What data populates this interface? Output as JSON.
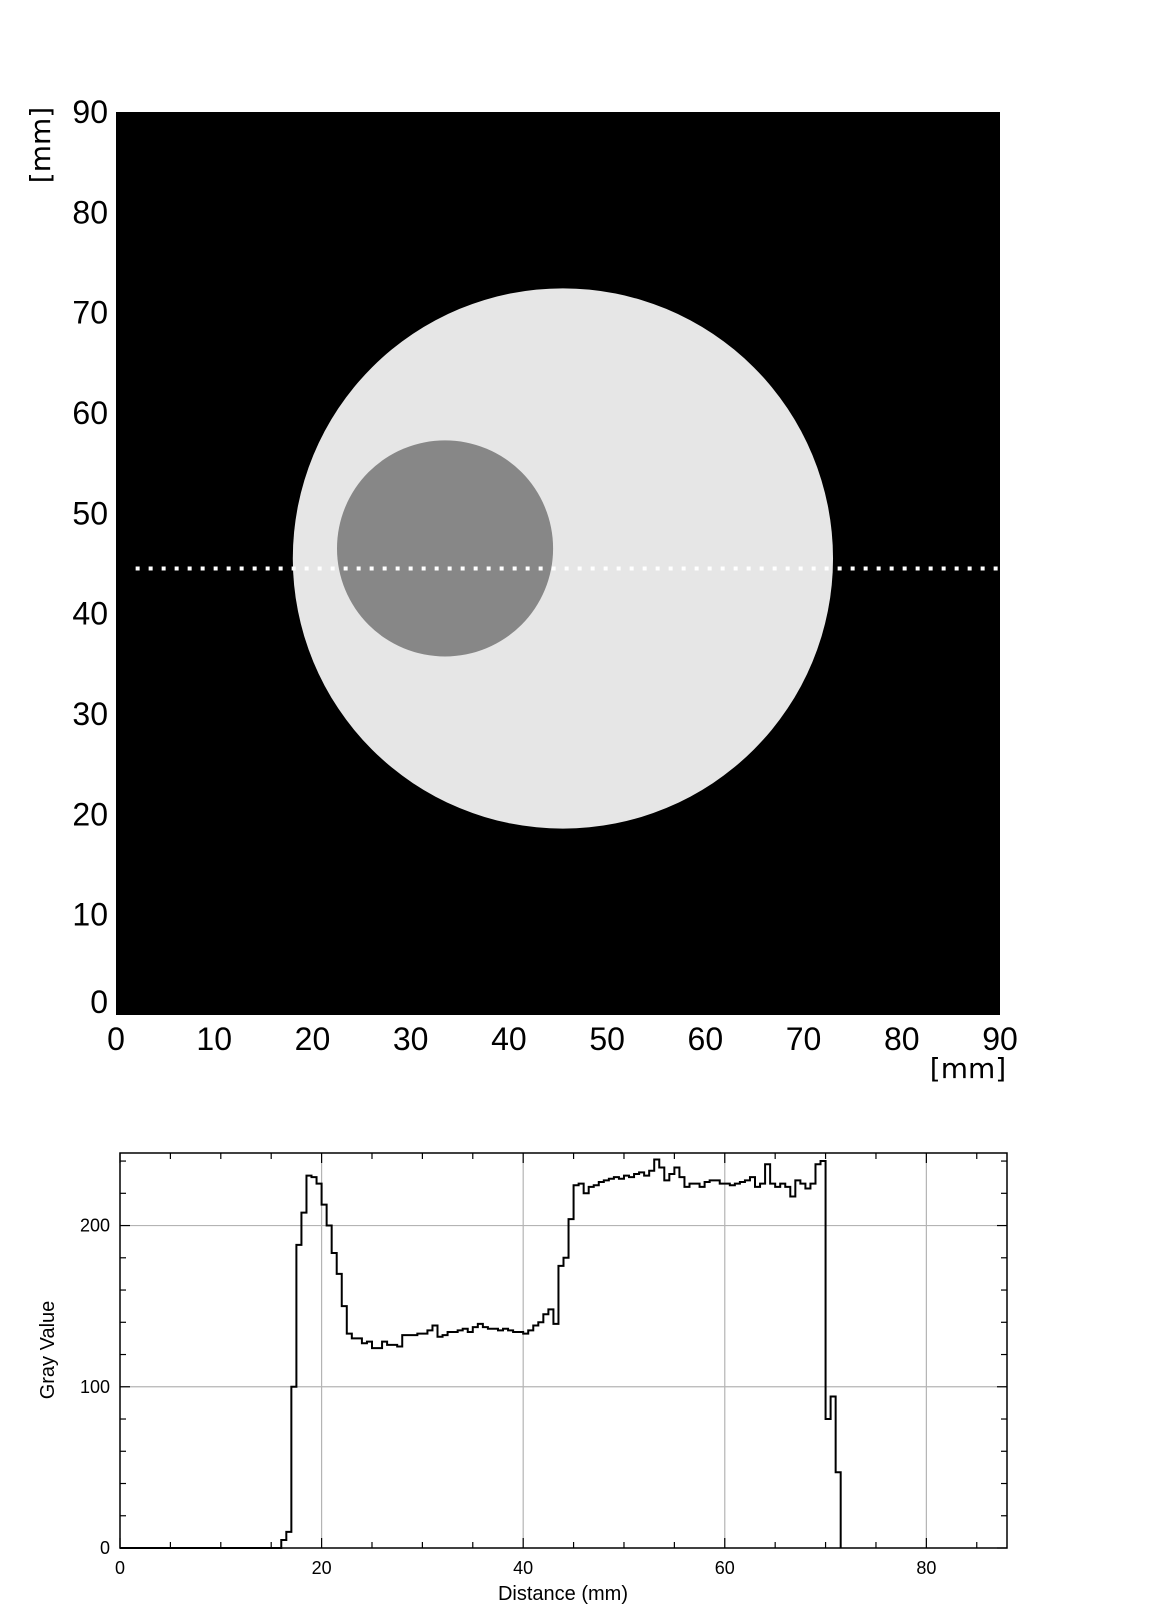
{
  "chart_data": [
    {
      "type": "heatmap",
      "x_unit_label": "[mm]",
      "y_unit_label": "[mm]",
      "xlim": [
        0,
        90
      ],
      "ylim": [
        0,
        90
      ],
      "x_ticks": [
        "0",
        "10",
        "20",
        "30",
        "40",
        "50",
        "60",
        "70",
        "80",
        "90"
      ],
      "y_ticks": [
        "0",
        "10",
        "20",
        "30",
        "40",
        "50",
        "60",
        "70",
        "80",
        "90"
      ],
      "background_color": "#000000",
      "objects": [
        {
          "shape": "disk",
          "center": [
            45.5,
            45.5
          ],
          "radius": 27.5,
          "gray_value": 228,
          "color": "#e6e6e6"
        },
        {
          "shape": "disk",
          "center": [
            33.5,
            46.5
          ],
          "radius": 11.0,
          "gray_value": 135,
          "color": "#878787"
        }
      ],
      "profile_line": {
        "y": 44.5,
        "x_range": [
          2,
          90
        ],
        "style": "dotted",
        "color": "#ffffff"
      }
    },
    {
      "type": "line",
      "xlabel": "Distance (mm)",
      "ylabel": "Gray Value",
      "xlim": [
        0,
        88
      ],
      "ylim": [
        0,
        245
      ],
      "x_ticks": [
        0,
        20,
        40,
        60,
        80
      ],
      "y_ticks": [
        0,
        100,
        200
      ],
      "grid": true,
      "step": true,
      "x": [
        0,
        16,
        16.5,
        17,
        17.5,
        18,
        18.5,
        19,
        19.5,
        20,
        20.5,
        21,
        21.5,
        22,
        22.5,
        23,
        23.5,
        24,
        24.5,
        25,
        25.5,
        26,
        26.5,
        27,
        27.5,
        28,
        28.5,
        29,
        29.5,
        30,
        30.5,
        31,
        31.5,
        32,
        32.5,
        33,
        33.5,
        34,
        34.5,
        35,
        35.5,
        36,
        36.5,
        37,
        37.5,
        38,
        38.5,
        39,
        39.5,
        40,
        40.5,
        41,
        41.5,
        42,
        42.5,
        43,
        43.5,
        44,
        44.5,
        45,
        45.5,
        46,
        46.5,
        47,
        47.5,
        48,
        48.5,
        49,
        49.5,
        50,
        50.5,
        51,
        51.5,
        52,
        52.5,
        53,
        53.5,
        54,
        54.5,
        55,
        55.5,
        56,
        56.5,
        57,
        57.5,
        58,
        58.5,
        59,
        59.5,
        60,
        60.5,
        61,
        61.5,
        62,
        62.5,
        63,
        63.5,
        64,
        64.5,
        65,
        65.5,
        66,
        66.5,
        67,
        67.5,
        68,
        68.5,
        69,
        69.5,
        70,
        70.5,
        71,
        71.5
      ],
      "values": [
        0,
        5,
        10,
        100,
        188,
        208,
        231,
        230,
        226,
        213,
        200,
        183,
        170,
        150,
        133,
        130,
        130,
        127,
        128,
        124,
        124,
        128,
        126,
        126,
        125,
        132,
        132,
        132,
        133,
        133,
        135,
        138,
        131,
        132,
        134,
        134,
        135,
        136,
        134,
        137,
        139,
        137,
        136,
        136,
        135,
        136,
        135,
        134,
        134,
        133,
        135,
        138,
        140,
        145,
        148,
        139,
        175,
        180,
        204,
        225,
        226,
        220,
        224,
        225,
        227,
        228,
        229,
        230,
        229,
        231,
        230,
        232,
        233,
        231,
        234,
        241,
        236,
        228,
        232,
        236,
        230,
        224,
        226,
        226,
        224,
        227,
        228,
        228,
        226,
        226,
        225,
        226,
        227,
        228,
        230,
        224,
        226,
        238,
        226,
        224,
        226,
        224,
        218,
        228,
        226,
        223,
        226,
        238,
        240,
        80,
        94,
        47,
        0
      ]
    }
  ]
}
